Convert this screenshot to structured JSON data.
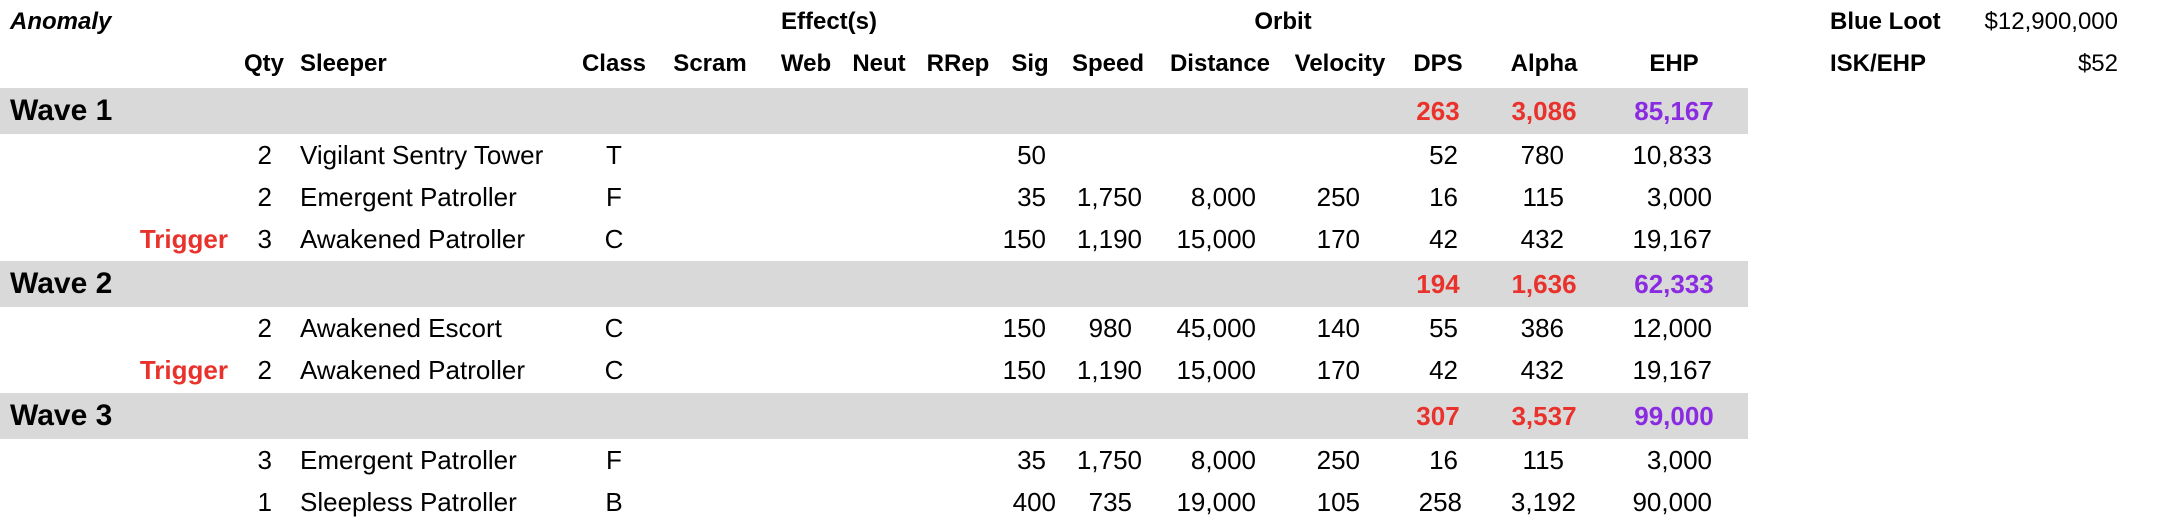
{
  "header": {
    "anomaly_label": "Anomaly",
    "effects_label": "Effect(s)",
    "orbit_label": "Orbit",
    "columns": {
      "qty": "Qty",
      "sleeper": "Sleeper",
      "class": "Class",
      "scram": "Scram",
      "web": "Web",
      "neut": "Neut",
      "rrep": "RRep",
      "sig": "Sig",
      "speed": "Speed",
      "distance": "Distance",
      "velocity": "Velocity",
      "dps": "DPS",
      "alpha": "Alpha",
      "ehp": "EHP"
    }
  },
  "summary": {
    "blue_loot_label": "Blue Loot",
    "blue_loot_value": "$12,900,000",
    "isk_ehp_label": "ISK/EHP",
    "isk_ehp_value": "$52"
  },
  "waves": [
    {
      "title": "Wave 1",
      "dps": "263",
      "alpha": "3,086",
      "ehp": "85,167",
      "rows": [
        {
          "trigger": "",
          "qty": "2",
          "sleeper": "Vigilant Sentry Tower",
          "class": "T",
          "sig": "50",
          "speed": "",
          "distance": "",
          "velocity": "",
          "dps": "52",
          "alpha": "780",
          "ehp": "10,833"
        },
        {
          "trigger": "",
          "qty": "2",
          "sleeper": "Emergent Patroller",
          "class": "F",
          "sig": "35",
          "speed": "1,750",
          "distance": "8,000",
          "velocity": "250",
          "dps": "16",
          "alpha": "115",
          "ehp": "3,000"
        },
        {
          "trigger": "Trigger",
          "qty": "3",
          "sleeper": "Awakened Patroller",
          "class": "C",
          "sig": "150",
          "speed": "1,190",
          "distance": "15,000",
          "velocity": "170",
          "dps": "42",
          "alpha": "432",
          "ehp": "19,167"
        }
      ]
    },
    {
      "title": "Wave 2",
      "dps": "194",
      "alpha": "1,636",
      "ehp": "62,333",
      "rows": [
        {
          "trigger": "",
          "qty": "2",
          "sleeper": "Awakened Escort",
          "class": "C",
          "sig": "150",
          "speed": "980",
          "distance": "45,000",
          "velocity": "140",
          "dps": "55",
          "alpha": "386",
          "ehp": "12,000"
        },
        {
          "trigger": "Trigger",
          "qty": "2",
          "sleeper": "Awakened Patroller",
          "class": "C",
          "sig": "150",
          "speed": "1,190",
          "distance": "15,000",
          "velocity": "170",
          "dps": "42",
          "alpha": "432",
          "ehp": "19,167"
        }
      ]
    },
    {
      "title": "Wave 3",
      "dps": "307",
      "alpha": "3,537",
      "ehp": "99,000",
      "rows": [
        {
          "trigger": "",
          "qty": "3",
          "sleeper": "Emergent Patroller",
          "class": "F",
          "sig": "35",
          "speed": "1,750",
          "distance": "8,000",
          "velocity": "250",
          "dps": "16",
          "alpha": "115",
          "ehp": "3,000"
        },
        {
          "trigger": "",
          "qty": "1",
          "sleeper": "Sleepless Patroller",
          "class": "B",
          "sig": "400",
          "speed": "735",
          "distance": "19,000",
          "velocity": "105",
          "dps": "258",
          "alpha": "3,192",
          "ehp": "90,000"
        }
      ]
    }
  ]
}
